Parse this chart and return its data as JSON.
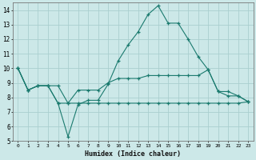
{
  "x": [
    0,
    1,
    2,
    3,
    4,
    5,
    6,
    7,
    8,
    9,
    10,
    11,
    12,
    13,
    14,
    15,
    16,
    17,
    18,
    19,
    20,
    21,
    22,
    23
  ],
  "line1": [
    10.0,
    8.5,
    8.8,
    8.8,
    7.6,
    5.3,
    7.5,
    7.8,
    7.8,
    8.9,
    10.5,
    11.6,
    12.5,
    13.7,
    14.3,
    13.1,
    13.1,
    12.0,
    10.8,
    9.9,
    8.4,
    8.1,
    8.1,
    7.7
  ],
  "line2": [
    10.0,
    8.5,
    8.8,
    8.8,
    8.8,
    7.6,
    8.5,
    8.5,
    8.5,
    9.0,
    9.3,
    9.3,
    9.3,
    9.5,
    9.5,
    9.5,
    9.5,
    9.5,
    9.5,
    9.9,
    8.4,
    8.4,
    8.1,
    7.7
  ],
  "line3": [
    10.0,
    8.5,
    8.8,
    8.8,
    7.6,
    7.6,
    7.6,
    7.6,
    7.6,
    7.6,
    7.6,
    7.6,
    7.6,
    7.6,
    7.6,
    7.6,
    7.6,
    7.6,
    7.6,
    7.6,
    7.6,
    7.6,
    7.6,
    7.7
  ],
  "color": "#1a7a6e",
  "bg_color": "#cce8e8",
  "grid_color": "#aacfcf",
  "xlabel": "Humidex (Indice chaleur)",
  "ylim": [
    5,
    14.5
  ],
  "xlim": [
    -0.5,
    23.5
  ],
  "yticks": [
    5,
    6,
    7,
    8,
    9,
    10,
    11,
    12,
    13,
    14
  ],
  "xticks": [
    0,
    1,
    2,
    3,
    4,
    5,
    6,
    7,
    8,
    9,
    10,
    11,
    12,
    13,
    14,
    15,
    16,
    17,
    18,
    19,
    20,
    21,
    22,
    23
  ]
}
